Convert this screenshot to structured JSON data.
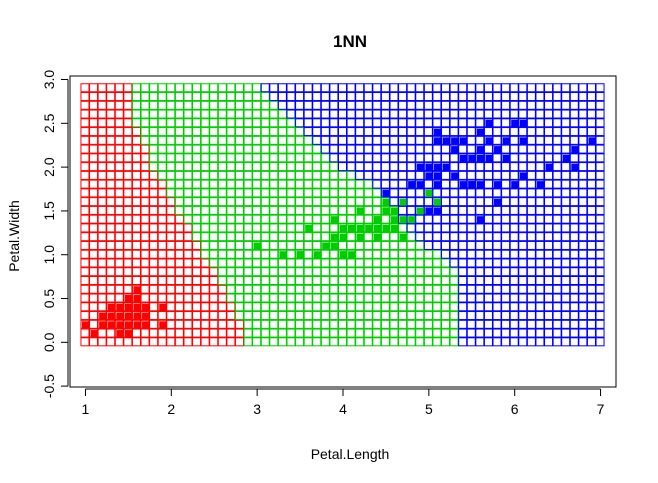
{
  "chart_data": {
    "type": "scatter",
    "title": "1NN",
    "xlabel": "Petal.Length",
    "ylabel": "Petal.Width",
    "xlim": [
      0.82,
      7.18
    ],
    "ylim": [
      -0.51,
      3.04
    ],
    "x_ticks": [
      1,
      2,
      3,
      4,
      5,
      6,
      7
    ],
    "y_ticks": [
      -0.5,
      0.0,
      0.5,
      1.0,
      1.5,
      2.0,
      2.5,
      3.0
    ],
    "x_tick_labels": [
      "1",
      "2",
      "3",
      "4",
      "5",
      "6",
      "7"
    ],
    "y_tick_labels": [
      "-0.5",
      "0.0",
      "0.5",
      "1.0",
      "1.5",
      "2.0",
      "2.5",
      "3.0"
    ],
    "grid": false,
    "legend": "none",
    "colors": {
      "class_1": "#ff0000",
      "class_2": "#00cd00",
      "class_3": "#0000ff"
    },
    "decision_grid": {
      "x_start": 1.0,
      "x_step": 0.1,
      "x_count": 61,
      "y_start": 0.0,
      "y_step": 0.1,
      "y_count": 30,
      "boundary_1_2": [
        [
          0.0,
          2.9
        ],
        [
          0.5,
          2.7
        ],
        [
          1.0,
          2.4
        ],
        [
          1.5,
          2.1
        ],
        [
          2.0,
          1.8
        ],
        [
          2.5,
          1.6
        ],
        [
          2.9,
          1.6
        ]
      ],
      "boundary_2_3": [
        [
          0.0,
          5.4
        ],
        [
          0.5,
          5.4
        ],
        [
          0.9,
          5.3
        ],
        [
          1.1,
          5.0
        ],
        [
          1.4,
          4.7
        ],
        [
          1.7,
          4.5
        ],
        [
          1.8,
          4.4
        ],
        [
          2.0,
          4.0
        ],
        [
          2.3,
          3.7
        ],
        [
          2.6,
          3.4
        ],
        [
          2.9,
          3.1
        ]
      ]
    },
    "series": [
      {
        "class": "class_1",
        "points": [
          [
            1.0,
            0.2
          ],
          [
            1.1,
            0.1
          ],
          [
            1.2,
            0.2
          ],
          [
            1.3,
            0.2
          ],
          [
            1.3,
            0.3
          ],
          [
            1.3,
            0.4
          ],
          [
            1.4,
            0.1
          ],
          [
            1.4,
            0.2
          ],
          [
            1.4,
            0.3
          ],
          [
            1.5,
            0.1
          ],
          [
            1.5,
            0.2
          ],
          [
            1.5,
            0.3
          ],
          [
            1.5,
            0.4
          ],
          [
            1.6,
            0.2
          ],
          [
            1.6,
            0.4
          ],
          [
            1.6,
            0.6
          ],
          [
            1.6,
            0.5
          ],
          [
            1.7,
            0.2
          ],
          [
            1.7,
            0.3
          ],
          [
            1.7,
            0.4
          ],
          [
            1.9,
            0.2
          ],
          [
            1.9,
            0.4
          ],
          [
            1.2,
            0.3
          ],
          [
            1.4,
            0.4
          ],
          [
            1.6,
            0.3
          ],
          [
            1.5,
            0.5
          ]
        ]
      },
      {
        "class": "class_2",
        "points": [
          [
            3.0,
            1.1
          ],
          [
            3.3,
            1.0
          ],
          [
            3.5,
            1.0
          ],
          [
            3.6,
            1.3
          ],
          [
            3.7,
            1.0
          ],
          [
            3.8,
            1.1
          ],
          [
            3.9,
            1.1
          ],
          [
            3.9,
            1.2
          ],
          [
            3.9,
            1.4
          ],
          [
            4.0,
            1.0
          ],
          [
            4.0,
            1.2
          ],
          [
            4.0,
            1.3
          ],
          [
            4.1,
            1.0
          ],
          [
            4.1,
            1.3
          ],
          [
            4.2,
            1.2
          ],
          [
            4.2,
            1.3
          ],
          [
            4.2,
            1.5
          ],
          [
            4.3,
            1.3
          ],
          [
            4.4,
            1.2
          ],
          [
            4.4,
            1.3
          ],
          [
            4.4,
            1.4
          ],
          [
            4.5,
            1.3
          ],
          [
            4.5,
            1.5
          ],
          [
            4.5,
            1.6
          ],
          [
            4.6,
            1.3
          ],
          [
            4.6,
            1.4
          ],
          [
            4.6,
            1.5
          ],
          [
            4.7,
            1.2
          ],
          [
            4.7,
            1.4
          ],
          [
            4.7,
            1.6
          ],
          [
            4.8,
            1.4
          ],
          [
            4.8,
            1.8
          ],
          [
            4.9,
            1.5
          ],
          [
            5.0,
            1.7
          ],
          [
            5.1,
            1.6
          ],
          [
            3.5,
            1.0
          ],
          [
            4.1,
            1.3
          ],
          [
            3.8,
            1.1
          ],
          [
            4.0,
            1.0
          ],
          [
            4.3,
            1.3
          ],
          [
            4.4,
            1.4
          ],
          [
            4.5,
            1.5
          ]
        ]
      },
      {
        "class": "class_3",
        "points": [
          [
            4.5,
            1.7
          ],
          [
            4.8,
            1.8
          ],
          [
            4.9,
            1.8
          ],
          [
            4.9,
            2.0
          ],
          [
            5.0,
            1.5
          ],
          [
            5.0,
            1.9
          ],
          [
            5.0,
            2.0
          ],
          [
            5.1,
            1.5
          ],
          [
            5.1,
            1.8
          ],
          [
            5.1,
            1.9
          ],
          [
            5.1,
            2.0
          ],
          [
            5.1,
            2.3
          ],
          [
            5.1,
            2.4
          ],
          [
            5.2,
            2.0
          ],
          [
            5.2,
            2.3
          ],
          [
            5.3,
            1.9
          ],
          [
            5.3,
            2.3
          ],
          [
            5.4,
            2.1
          ],
          [
            5.4,
            2.3
          ],
          [
            5.5,
            1.8
          ],
          [
            5.5,
            2.1
          ],
          [
            5.6,
            1.4
          ],
          [
            5.6,
            1.8
          ],
          [
            5.6,
            2.1
          ],
          [
            5.6,
            2.2
          ],
          [
            5.6,
            2.4
          ],
          [
            5.7,
            2.1
          ],
          [
            5.7,
            2.3
          ],
          [
            5.7,
            2.5
          ],
          [
            5.8,
            1.6
          ],
          [
            5.8,
            1.8
          ],
          [
            5.8,
            2.2
          ],
          [
            5.9,
            2.1
          ],
          [
            5.9,
            2.3
          ],
          [
            6.0,
            1.8
          ],
          [
            6.0,
            2.5
          ],
          [
            6.1,
            1.9
          ],
          [
            6.1,
            2.3
          ],
          [
            6.1,
            2.5
          ],
          [
            6.3,
            1.8
          ],
          [
            6.6,
            2.1
          ],
          [
            6.7,
            2.0
          ],
          [
            6.7,
            2.2
          ],
          [
            6.9,
            2.3
          ],
          [
            6.4,
            2.0
          ],
          [
            5.4,
            1.8
          ],
          [
            5.5,
            1.8
          ],
          [
            5.3,
            2.2
          ]
        ]
      }
    ]
  }
}
